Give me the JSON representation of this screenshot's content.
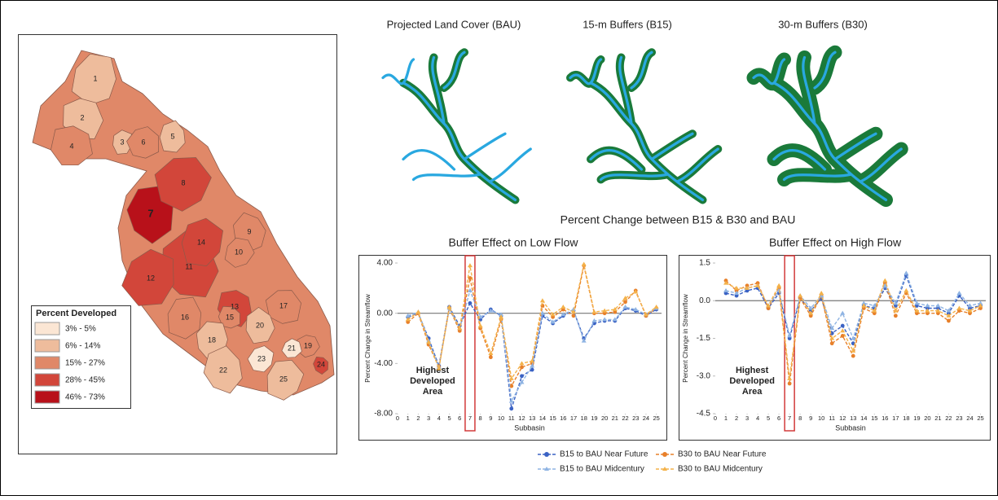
{
  "figure_title": "Percent Change between B15 & B30 and BAU",
  "scenarios": [
    "Projected Land Cover (BAU)",
    "15-m Buffers (B15)",
    "30-m Buffers (B30)"
  ],
  "map": {
    "legend_title": "Percent Developed",
    "legend": [
      {
        "label": "3% - 5%",
        "color": "#fbe6d4"
      },
      {
        "label": "6% - 14%",
        "color": "#eebc9c"
      },
      {
        "label": "15% - 27%",
        "color": "#e08868"
      },
      {
        "label": "28% - 45%",
        "color": "#d2463a"
      },
      {
        "label": "46% - 73%",
        "color": "#b8111a"
      }
    ],
    "subbasins": [
      {
        "label": "1",
        "color": "#eebc9c"
      },
      {
        "label": "2",
        "color": "#eebc9c"
      },
      {
        "label": "3",
        "color": "#eebc9c"
      },
      {
        "label": "4",
        "color": "#e08868"
      },
      {
        "label": "5",
        "color": "#eebc9c"
      },
      {
        "label": "6",
        "color": "#e08868"
      },
      {
        "label": "7",
        "color": "#b8111a"
      },
      {
        "label": "8",
        "color": "#d2463a"
      },
      {
        "label": "9",
        "color": "#e08868"
      },
      {
        "label": "10",
        "color": "#e08868"
      },
      {
        "label": "11",
        "color": "#d2463a"
      },
      {
        "label": "12",
        "color": "#d2463a"
      },
      {
        "label": "13",
        "color": "#d2463a"
      },
      {
        "label": "14",
        "color": "#d2463a"
      },
      {
        "label": "15",
        "color": "#e08868"
      },
      {
        "label": "16",
        "color": "#e08868"
      },
      {
        "label": "17",
        "color": "#e08868"
      },
      {
        "label": "18",
        "color": "#eebc9c"
      },
      {
        "label": "19",
        "color": "#e08868"
      },
      {
        "label": "20",
        "color": "#eebc9c"
      },
      {
        "label": "21",
        "color": "#fbe6d4"
      },
      {
        "label": "22",
        "color": "#eebc9c"
      },
      {
        "label": "23",
        "color": "#fbe6d4"
      },
      {
        "label": "24",
        "color": "#d2463a"
      },
      {
        "label": "25",
        "color": "#eebc9c"
      }
    ]
  },
  "chart_data": [
    {
      "type": "line",
      "title": "Buffer Effect on Low Flow",
      "x_label": "Subbasin",
      "y_label": "Percent Change in Streamflow",
      "annotation": [
        "Highest",
        "Developed",
        "Area"
      ],
      "highlight_x": 7,
      "x": [
        1,
        2,
        3,
        4,
        5,
        6,
        7,
        8,
        9,
        10,
        11,
        12,
        13,
        14,
        15,
        16,
        17,
        18,
        19,
        20,
        21,
        22,
        23,
        24,
        25
      ],
      "xlim": [
        0,
        25.5
      ],
      "xticks": [
        0,
        1,
        2,
        3,
        4,
        5,
        6,
        7,
        8,
        9,
        10,
        11,
        12,
        13,
        14,
        15,
        16,
        17,
        18,
        19,
        20,
        21,
        22,
        23,
        24,
        25
      ],
      "ylim": [
        -8,
        4
      ],
      "yticks": [
        {
          "value": 4,
          "label": "4.00"
        },
        {
          "value": 0,
          "label": "0.00"
        },
        {
          "value": -4,
          "label": "-4.00"
        },
        {
          "value": -8,
          "label": "-8.00"
        }
      ],
      "series": [
        {
          "name": "B15 to BAU Near Future",
          "color": "#3a62c4",
          "values": [
            -0.3,
            0.0,
            -2.0,
            -4.2,
            0.5,
            -1.0,
            0.8,
            -0.5,
            0.3,
            -0.2,
            -7.6,
            -5.0,
            -4.5,
            -0.2,
            -0.8,
            -0.2,
            0.2,
            -2.0,
            -0.8,
            -0.6,
            -0.6,
            0.4,
            0.2,
            -0.2,
            0.3
          ]
        },
        {
          "name": "B30 to BAU Near Future",
          "color": "#e8802a",
          "values": [
            -0.7,
            0.0,
            -2.5,
            -4.3,
            0.4,
            -1.4,
            2.8,
            -1.2,
            -3.5,
            -0.5,
            -5.8,
            -4.3,
            -4.0,
            0.6,
            -0.3,
            0.3,
            -0.2,
            3.8,
            0.0,
            0.0,
            0.1,
            0.9,
            1.8,
            -0.2,
            0.4
          ]
        },
        {
          "name": "B15 to BAU Midcentury",
          "color": "#8fb4e3",
          "values": [
            -0.2,
            0.1,
            -2.2,
            -4.3,
            0.4,
            -1.2,
            1.8,
            -0.3,
            0.2,
            -0.1,
            -7.0,
            -5.5,
            -4.2,
            0.0,
            -0.7,
            -0.1,
            0.3,
            -2.2,
            -0.6,
            -0.5,
            -0.5,
            0.5,
            0.3,
            -0.1,
            0.4
          ]
        },
        {
          "name": "B30 to BAU Midcentury",
          "color": "#f4b24a",
          "values": [
            -0.5,
            0.1,
            -2.3,
            -4.4,
            0.5,
            -1.2,
            3.8,
            -1.0,
            -3.2,
            -0.3,
            -5.2,
            -4.0,
            -3.8,
            1.0,
            -0.1,
            0.5,
            0.1,
            3.9,
            0.1,
            0.2,
            0.3,
            1.2,
            1.7,
            -0.1,
            0.5
          ]
        }
      ]
    },
    {
      "type": "line",
      "title": "Buffer Effect on High Flow",
      "x_label": "Subbasin",
      "y_label": "Percent Change in Streamflow",
      "annotation": [
        "Highest",
        "Developed",
        "Area"
      ],
      "highlight_x": 7,
      "x": [
        1,
        2,
        3,
        4,
        5,
        6,
        7,
        8,
        9,
        10,
        11,
        12,
        13,
        14,
        15,
        16,
        17,
        18,
        19,
        20,
        21,
        22,
        23,
        24,
        25
      ],
      "xlim": [
        0,
        25.5
      ],
      "xticks": [
        0,
        1,
        2,
        3,
        4,
        5,
        6,
        7,
        8,
        9,
        10,
        11,
        12,
        13,
        14,
        15,
        16,
        17,
        18,
        19,
        20,
        21,
        22,
        23,
        24,
        25
      ],
      "ylim": [
        -4.5,
        1.5
      ],
      "yticks": [
        1.5,
        {
          "value": 0,
          "label": "0.0"
        },
        -1.5,
        {
          "value": -3,
          "label": "-3.0"
        },
        -4.5
      ],
      "series": [
        {
          "name": "B15 to BAU Near Future",
          "color": "#3a62c4",
          "values": [
            0.3,
            0.2,
            0.4,
            0.5,
            -0.3,
            0.3,
            -1.5,
            0.1,
            -0.4,
            0.1,
            -1.3,
            -1.0,
            -1.7,
            -0.2,
            -0.3,
            0.5,
            -0.2,
            1.0,
            -0.2,
            -0.3,
            -0.3,
            -0.5,
            0.2,
            -0.3,
            -0.2
          ]
        },
        {
          "name": "B30 to BAU Near Future",
          "color": "#e8802a",
          "values": [
            0.8,
            0.4,
            0.6,
            0.7,
            -0.3,
            0.5,
            -3.3,
            0.1,
            -0.6,
            0.2,
            -1.7,
            -1.4,
            -2.2,
            -0.3,
            -0.5,
            0.7,
            -0.6,
            0.3,
            -0.5,
            -0.5,
            -0.5,
            -0.8,
            -0.4,
            -0.5,
            -0.3
          ]
        },
        {
          "name": "B15 to BAU Midcentury",
          "color": "#8fb4e3",
          "values": [
            0.4,
            0.3,
            0.5,
            0.6,
            -0.2,
            0.4,
            -1.4,
            0.2,
            -0.3,
            0.2,
            -1.1,
            -0.5,
            -1.5,
            -0.1,
            -0.2,
            0.6,
            -0.1,
            1.1,
            -0.1,
            -0.2,
            -0.2,
            -0.4,
            0.3,
            -0.2,
            -0.1
          ]
        },
        {
          "name": "B30 to BAU Midcentury",
          "color": "#f4b24a",
          "values": [
            0.7,
            0.5,
            0.5,
            0.6,
            -0.2,
            0.6,
            -3.1,
            0.2,
            -0.5,
            0.3,
            -1.5,
            -1.2,
            -2.0,
            -0.2,
            -0.4,
            0.8,
            -0.4,
            0.4,
            -0.4,
            -0.4,
            -0.4,
            -0.6,
            -0.3,
            -0.4,
            -0.2
          ]
        }
      ]
    }
  ]
}
